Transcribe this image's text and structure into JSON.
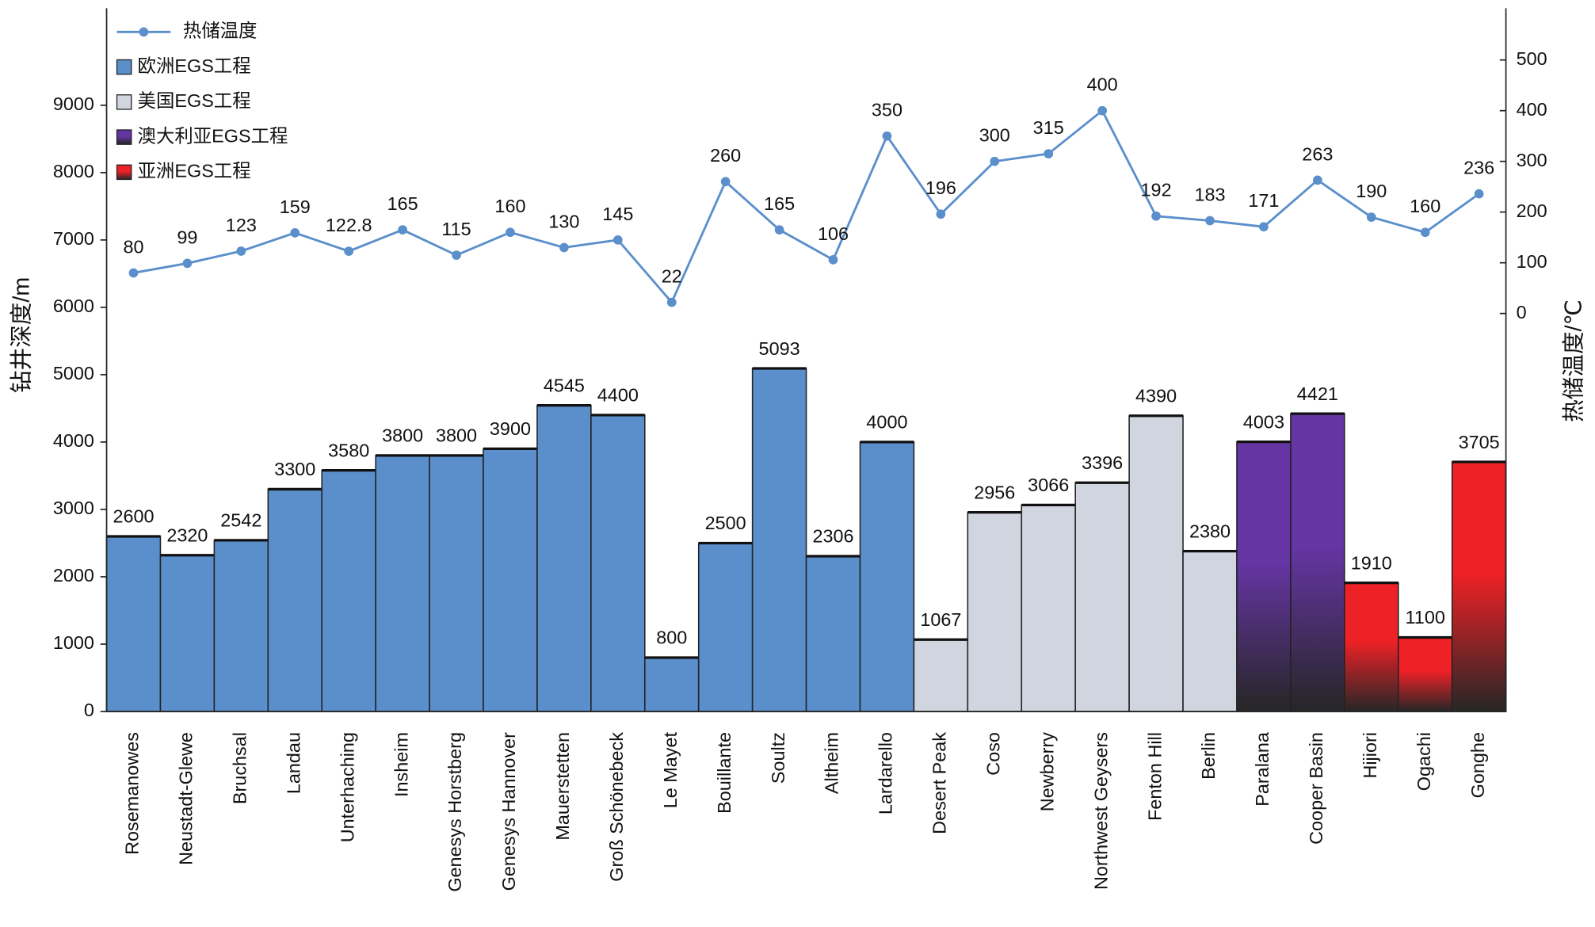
{
  "chart_data": {
    "type": "bar",
    "y_label": "钻井深度/m",
    "y2_label": "热储温度/℃",
    "categories": [
      "Rosemanowes",
      "Neustadt-Glewe",
      "Bruchsal",
      "Landau",
      "Unterhaching",
      "Insheim",
      "Genesys Horstberg",
      "Genesys Hannover",
      "Mauerstetten",
      "Groß Schönebeck",
      "Le Mayet",
      "Bouillante",
      "Soultz",
      "Altheim",
      "Lardarello",
      "Desert Peak",
      "Coso",
      "Newberry",
      "Northwest Geysers",
      "Fenton Hill",
      "Berlin",
      "Paralana",
      "Cooper Basin",
      "Hijiori",
      "Ogachi",
      "Gonghe"
    ],
    "series": [
      {
        "name": "热储温度",
        "type": "line",
        "axis": "y2",
        "color": "#5b8fcb",
        "values": [
          80,
          99,
          123,
          159,
          122.8,
          165,
          115,
          160,
          130,
          145,
          22,
          260,
          165,
          106,
          350,
          196,
          300,
          315,
          400,
          192,
          183,
          171,
          263,
          190,
          160,
          236
        ]
      },
      {
        "name": "欧洲EGS工程",
        "type": "bar",
        "color": "#5b8fcb",
        "values": [
          2600,
          2320,
          2542,
          3300,
          3580,
          3800,
          3800,
          3900,
          4545,
          4400,
          800,
          2500,
          5093,
          2306,
          4000,
          null,
          null,
          null,
          null,
          null,
          null,
          null,
          null,
          null,
          null,
          null
        ]
      },
      {
        "name": "美国EGS工程",
        "type": "bar",
        "color": "#d0d5e0",
        "values": [
          null,
          null,
          null,
          null,
          null,
          null,
          null,
          null,
          null,
          null,
          null,
          null,
          null,
          null,
          null,
          1067,
          2956,
          3066,
          3396,
          4390,
          2380,
          null,
          null,
          null,
          null,
          null
        ]
      },
      {
        "name": "澳大利亚EGS工程",
        "type": "bar",
        "color": "#6535a3",
        "gradient": true,
        "values": [
          null,
          null,
          null,
          null,
          null,
          null,
          null,
          null,
          null,
          null,
          null,
          null,
          null,
          null,
          null,
          null,
          null,
          null,
          null,
          null,
          null,
          4003,
          4421,
          null,
          null,
          null
        ]
      },
      {
        "name": "亚洲EGS工程",
        "type": "bar",
        "color": "#ee2126",
        "gradient": true,
        "values": [
          null,
          null,
          null,
          null,
          null,
          null,
          null,
          null,
          null,
          null,
          null,
          null,
          null,
          null,
          null,
          null,
          null,
          null,
          null,
          null,
          null,
          null,
          null,
          1910,
          1100,
          3705
        ]
      }
    ],
    "ylim": [
      0,
      10440
    ],
    "yticks": [
      0,
      1000,
      2000,
      3000,
      4000,
      5000,
      6000,
      7000,
      8000,
      9000
    ],
    "y2lim": [
      -785,
      602
    ],
    "y2ticks": [
      0,
      100,
      200,
      300,
      400,
      500
    ],
    "legend": "upper left"
  }
}
